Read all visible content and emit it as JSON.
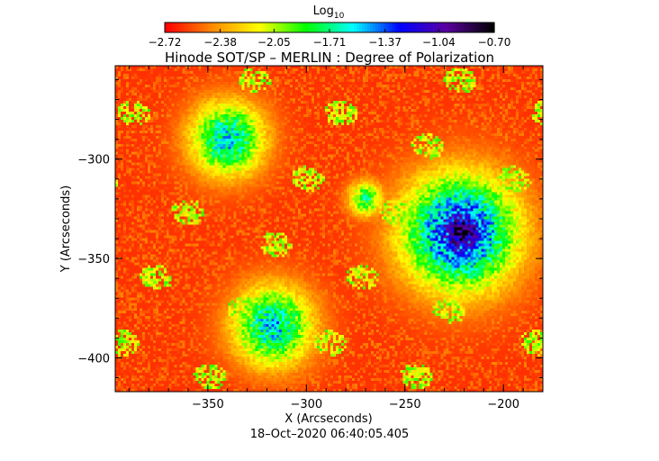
{
  "chart_data": {
    "type": "heatmap",
    "title": "Hinode SOT/SP – MERLIN : Degree of Polarization",
    "xlabel": "X (Arcseconds)",
    "ylabel": "Y (Arcseconds)",
    "timestamp": "18–Oct–2020 06:40:05.405",
    "xlim": [
      -397,
      -180
    ],
    "ylim": [
      -417,
      -253
    ],
    "x_ticks": [
      {
        "value": -350,
        "label": "−350"
      },
      {
        "value": -300,
        "label": "−300"
      },
      {
        "value": -250,
        "label": "−250"
      },
      {
        "value": -200,
        "label": "−200"
      }
    ],
    "y_ticks": [
      {
        "value": -300,
        "label": "−300"
      },
      {
        "value": -350,
        "label": "−350"
      },
      {
        "value": -400,
        "label": "−400"
      }
    ],
    "colorbar": {
      "title": "Log",
      "title_subscript": "10",
      "range": [
        -2.72,
        -0.7
      ],
      "tick_values": [
        -2.72,
        -2.38,
        -2.05,
        -1.71,
        -1.37,
        -1.04,
        -0.7
      ],
      "tick_labels": [
        "−2.72",
        "−2.38",
        "−2.05",
        "−1.71",
        "−1.37",
        "−1.04",
        "−0.70"
      ],
      "colors": [
        "#ff0000",
        "#ff8c00",
        "#ffff00",
        "#00ff00",
        "#00ffff",
        "#0000ff",
        "#5a00a0",
        "#000000"
      ]
    },
    "features": [
      {
        "kind": "sunspot-umbra",
        "x": -221,
        "y": -337,
        "radius": 10,
        "value": -0.75
      },
      {
        "kind": "sunspot-penumbra",
        "x": -222,
        "y": -337,
        "radius": 20,
        "value": -1.1
      },
      {
        "kind": "plage",
        "x": -340,
        "y": -290,
        "radius": 13,
        "value": -1.5
      },
      {
        "kind": "plage",
        "x": -317,
        "y": -384,
        "radius": 14,
        "value": -1.5
      },
      {
        "kind": "plage",
        "x": -270,
        "y": -320,
        "radius": 6,
        "value": -1.7
      }
    ]
  }
}
